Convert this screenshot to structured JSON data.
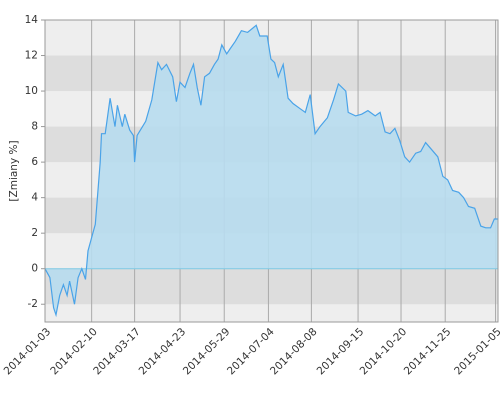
{
  "chart_data": {
    "type": "area",
    "y_label": "[Zmiany %]",
    "x": [
      "2014-01-03",
      "2014-01-07",
      "2014-01-10",
      "2014-01-12",
      "2014-01-15",
      "2014-01-18",
      "2014-01-21",
      "2014-01-23",
      "2014-01-27",
      "2014-01-30",
      "2014-02-02",
      "2014-02-05",
      "2014-02-07",
      "2014-02-13",
      "2014-02-17",
      "2014-02-18",
      "2014-02-21",
      "2014-02-25",
      "2014-03-01",
      "2014-03-03",
      "2014-03-07",
      "2014-03-09",
      "2014-03-13",
      "2014-03-16",
      "2014-03-17",
      "2014-03-19",
      "2014-03-26",
      "2014-03-31",
      "2014-04-05",
      "2014-04-08",
      "2014-04-12",
      "2014-04-17",
      "2014-04-20",
      "2014-04-23",
      "2014-04-27",
      "2014-05-01",
      "2014-05-04",
      "2014-05-07",
      "2014-05-10",
      "2014-05-13",
      "2014-05-17",
      "2014-05-21",
      "2014-05-24",
      "2014-05-27",
      "2014-05-31",
      "2014-06-03",
      "2014-06-07",
      "2014-06-12",
      "2014-06-17",
      "2014-06-24",
      "2014-06-27",
      "2014-07-03",
      "2014-07-06",
      "2014-07-09",
      "2014-07-12",
      "2014-07-16",
      "2014-07-20",
      "2014-07-24",
      "2014-07-30",
      "2014-08-03",
      "2014-08-07",
      "2014-08-11",
      "2014-08-15",
      "2014-08-21",
      "2014-08-26",
      "2014-08-30",
      "2014-09-05",
      "2014-09-07",
      "2014-09-13",
      "2014-09-18",
      "2014-09-23",
      "2014-09-29",
      "2014-10-03",
      "2014-10-07",
      "2014-10-11",
      "2014-10-15",
      "2014-10-19",
      "2014-10-23",
      "2014-10-27",
      "2014-11-01",
      "2014-11-05",
      "2014-11-09",
      "2014-11-14",
      "2014-11-19",
      "2014-11-23",
      "2014-11-27",
      "2014-12-01",
      "2014-12-06",
      "2014-12-10",
      "2014-12-14",
      "2014-12-19",
      "2014-12-24",
      "2014-12-28",
      "2015-01-01",
      "2015-01-04",
      "2015-01-07"
    ],
    "series": [
      {
        "color": "#4aa3e8",
        "fill": "#b7dcee",
        "values": [
          0,
          -0.5,
          -2.2,
          -2.6,
          -1.5,
          -0.9,
          -1.5,
          -0.7,
          -2.0,
          -0.5,
          0,
          -0.6,
          1.0,
          2.5,
          6.0,
          7.6,
          7.6,
          9.6,
          8.0,
          9.2,
          8.0,
          8.7,
          7.8,
          7.5,
          6.0,
          7.5,
          8.3,
          9.5,
          11.6,
          11.2,
          11.5,
          10.8,
          9.4,
          10.5,
          10.2,
          11.0,
          11.5,
          10.2,
          9.2,
          10.8,
          11.0,
          11.5,
          11.8,
          12.6,
          12.1,
          12.4,
          12.8,
          13.4,
          13.3,
          13.7,
          13.1,
          13.1,
          11.8,
          11.6,
          10.8,
          11.5,
          9.6,
          9.3,
          9.0,
          8.8,
          9.8,
          7.6,
          8.0,
          8.5,
          9.5,
          10.4,
          10.0,
          8.8,
          8.6,
          8.7,
          8.9,
          8.6,
          8.8,
          7.7,
          7.6,
          7.9,
          7.2,
          6.3,
          6.0,
          6.5,
          6.6,
          7.1,
          6.7,
          6.3,
          5.2,
          5.0,
          4.4,
          4.3,
          4.0,
          3.5,
          3.4,
          2.4,
          2.3,
          2.3,
          2.8,
          2.8
        ]
      }
    ],
    "xlim": [
      "2014-01-03",
      "2015-01-07"
    ],
    "xticks": [
      "2014-01-03",
      "2014-02-10",
      "2014-03-17",
      "2014-04-23",
      "2014-05-29",
      "2014-07-04",
      "2014-08-08",
      "2014-09-15",
      "2014-10-20",
      "2014-11-25",
      "2015-01-05"
    ],
    "ylim": [
      -3,
      14
    ],
    "yticks": [
      -2,
      0,
      2,
      4,
      6,
      8,
      10,
      12,
      14
    ],
    "grid": true
  }
}
